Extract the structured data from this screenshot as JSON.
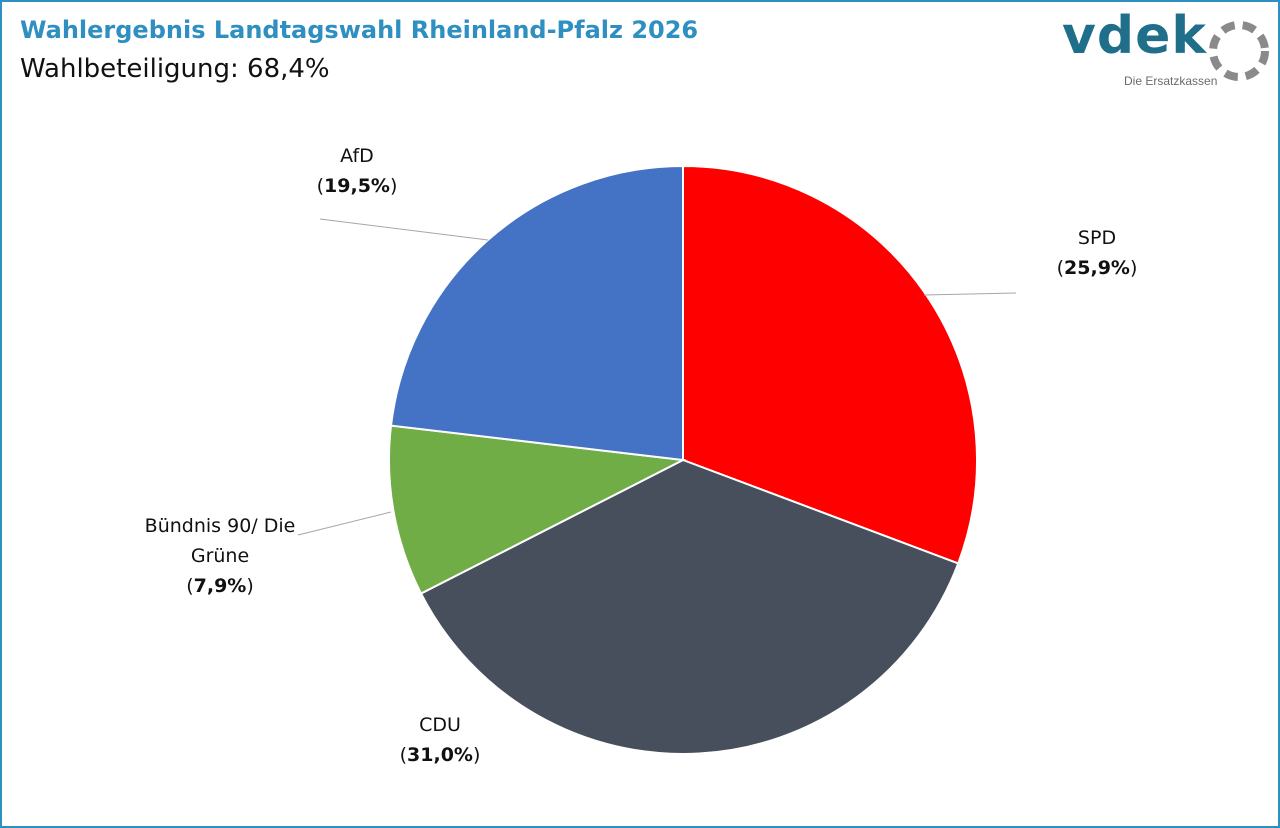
{
  "header": {
    "title": "Wahlergebnis Landtagswahl Rheinland-Pfalz 2026",
    "subtitle": "Wahlbeteiligung: 68,4%"
  },
  "logo": {
    "wordmark": "vdek",
    "tagline": "Die Ersatzkassen",
    "icon": "vdek-ring-logo",
    "color": "#1f6f8b"
  },
  "colors": {
    "title": "#2e8fc0",
    "border": "#2e8fc0"
  },
  "chart_data": {
    "type": "pie",
    "start_angle_deg": 0,
    "direction": "clockwise",
    "slices": [
      {
        "name": "SPD",
        "value": 25.9,
        "value_label": "25,9%",
        "color": "#ff0000",
        "label_lines": [
          "SPD"
        ]
      },
      {
        "name": "CDU",
        "value": 31.0,
        "value_label": "31,0%",
        "color": "#474e5c",
        "label_lines": [
          "CDU"
        ]
      },
      {
        "name": "Bündnis 90/ Die Grüne",
        "value": 7.9,
        "value_label": "7,9%",
        "color": "#70ad47",
        "label_lines": [
          "Bündnis 90/ Die",
          "Grüne"
        ]
      },
      {
        "name": "AfD",
        "value": 19.5,
        "value_label": "19,5%",
        "color": "#4472c4",
        "label_lines": [
          "AfD"
        ]
      }
    ],
    "legend": "none"
  }
}
